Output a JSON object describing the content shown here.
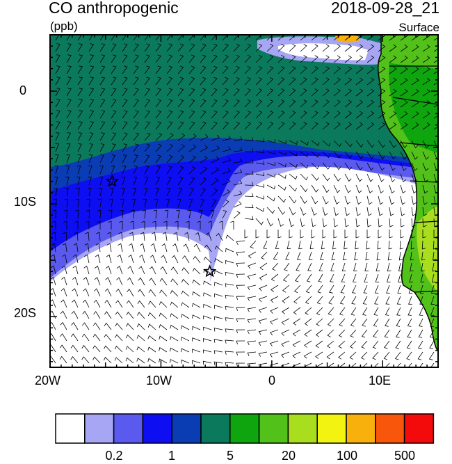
{
  "header": {
    "title": "CO anthropogenic",
    "units": "(ppb)",
    "datetime": "2018-09-28_21",
    "level": "Surface"
  },
  "axes": {
    "x_ticks": [
      "20W",
      "10W",
      "0",
      "10E"
    ],
    "y_ticks": [
      "0",
      "10S",
      "20S"
    ],
    "lon_range": [
      -20,
      15
    ],
    "lat_range": [
      -24.5,
      5
    ]
  },
  "colorbar": {
    "colors": [
      "#ffffff",
      "#a6a6f5",
      "#5a5aef",
      "#0e0ef2",
      "#0a3cb4",
      "#0b7a5c",
      "#0ea50e",
      "#52c11a",
      "#a8de1e",
      "#f3f312",
      "#f8b00c",
      "#f8560a",
      "#f30a0a"
    ],
    "labels": [
      "0.2",
      "1",
      "5",
      "20",
      "100",
      "500"
    ]
  },
  "markers": [
    {
      "name": "star-west",
      "lon": -14.4,
      "lat": -8.0
    },
    {
      "name": "star-south",
      "lon": -5.6,
      "lat": -16.0
    }
  ]
}
